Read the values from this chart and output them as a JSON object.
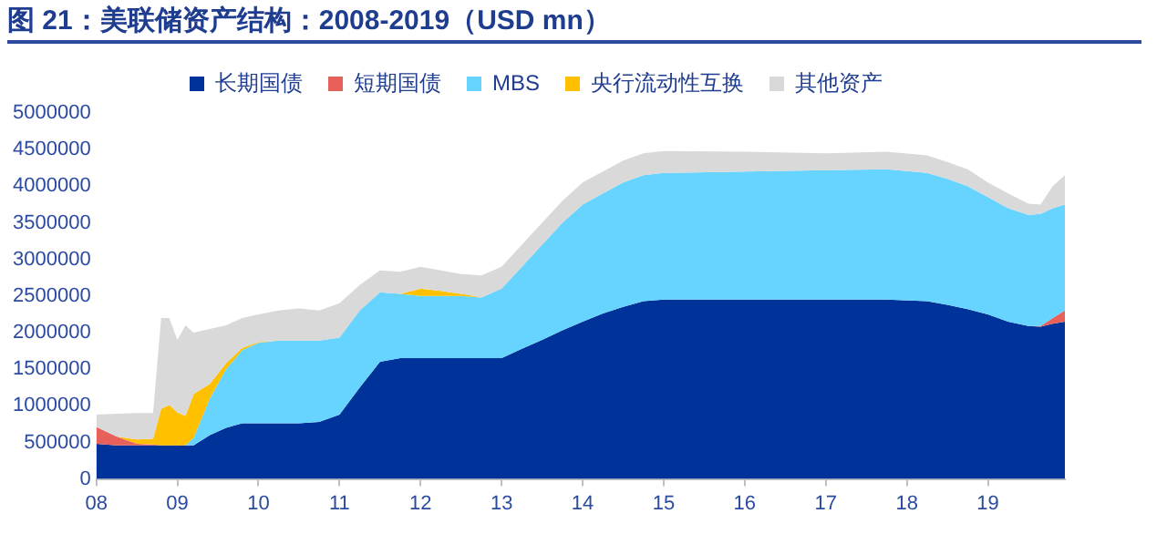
{
  "chart_data": {
    "type": "area",
    "title": "图 21：美联储资产结构：2008-2019（USD mn）",
    "stacked": true,
    "legend": "top",
    "x": [
      2008.0,
      2008.25,
      2008.5,
      2008.7,
      2008.8,
      2008.9,
      2009.0,
      2009.1,
      2009.2,
      2009.4,
      2009.6,
      2009.8,
      2010.0,
      2010.25,
      2010.5,
      2010.75,
      2011.0,
      2011.25,
      2011.5,
      2011.75,
      2012.0,
      2012.25,
      2012.5,
      2012.75,
      2013.0,
      2013.25,
      2013.5,
      2013.75,
      2014.0,
      2014.25,
      2014.5,
      2014.75,
      2015.0,
      2016.0,
      2017.0,
      2017.75,
      2018.25,
      2018.5,
      2018.75,
      2019.0,
      2019.25,
      2019.5,
      2019.65,
      2019.8,
      2019.95
    ],
    "xlim": [
      2008,
      2019.95
    ],
    "xticks": [
      {
        "value": 2008,
        "label": "08"
      },
      {
        "value": 2009,
        "label": "09"
      },
      {
        "value": 2010,
        "label": "10"
      },
      {
        "value": 2011,
        "label": "11"
      },
      {
        "value": 2012,
        "label": "12"
      },
      {
        "value": 2013,
        "label": "13"
      },
      {
        "value": 2014,
        "label": "14"
      },
      {
        "value": 2015,
        "label": "15"
      },
      {
        "value": 2016,
        "label": "16"
      },
      {
        "value": 2017,
        "label": "17"
      },
      {
        "value": 2018,
        "label": "18"
      },
      {
        "value": 2019,
        "label": "19"
      }
    ],
    "ylim": [
      0,
      5000000
    ],
    "yticks": [
      0,
      500000,
      1000000,
      1500000,
      2000000,
      2500000,
      3000000,
      3500000,
      4000000,
      4500000,
      5000000
    ],
    "series": [
      {
        "name": "长期国债",
        "color": "#003399",
        "values": [
          480000,
          460000,
          460000,
          460000,
          460000,
          460000,
          460000,
          460000,
          460000,
          600000,
          700000,
          760000,
          760000,
          760000,
          760000,
          780000,
          880000,
          1250000,
          1600000,
          1650000,
          1650000,
          1650000,
          1650000,
          1650000,
          1650000,
          1780000,
          1900000,
          2030000,
          2150000,
          2260000,
          2350000,
          2430000,
          2450000,
          2450000,
          2450000,
          2450000,
          2430000,
          2380000,
          2320000,
          2250000,
          2150000,
          2090000,
          2080000,
          2120000,
          2150000
        ]
      },
      {
        "name": "短期国债",
        "color": "#e8605a",
        "values": [
          230000,
          120000,
          20000,
          10000,
          0,
          0,
          0,
          0,
          0,
          0,
          0,
          0,
          0,
          0,
          0,
          0,
          0,
          0,
          0,
          0,
          0,
          0,
          0,
          0,
          0,
          0,
          0,
          0,
          0,
          0,
          0,
          0,
          0,
          0,
          0,
          0,
          0,
          0,
          0,
          0,
          0,
          0,
          10000,
          80000,
          150000
        ]
      },
      {
        "name": "MBS",
        "color": "#66d4ff",
        "values": [
          0,
          0,
          0,
          0,
          0,
          0,
          0,
          0,
          100000,
          500000,
          800000,
          1000000,
          1100000,
          1130000,
          1130000,
          1110000,
          1050000,
          1050000,
          950000,
          880000,
          850000,
          850000,
          850000,
          830000,
          950000,
          1120000,
          1300000,
          1470000,
          1600000,
          1640000,
          1700000,
          1720000,
          1730000,
          1750000,
          1770000,
          1780000,
          1750000,
          1720000,
          1680000,
          1600000,
          1550000,
          1520000,
          1530000,
          1500000,
          1450000
        ]
      },
      {
        "name": "央行流动性互换",
        "color": "#ffc000",
        "values": [
          null,
          0,
          60000,
          80000,
          500000,
          550000,
          450000,
          400000,
          600000,
          200000,
          80000,
          30000,
          10000,
          0,
          null,
          null,
          null,
          null,
          null,
          0,
          100000,
          70000,
          30000,
          0,
          null,
          null,
          null,
          null,
          null,
          null,
          null,
          null,
          null,
          null,
          null,
          null,
          null,
          null,
          null,
          null,
          null,
          null,
          null,
          null,
          null
        ]
      },
      {
        "name": "其他资产",
        "color": "#d9d9d9",
        "values": [
          170000,
          310000,
          360000,
          350000,
          1240000,
          1190000,
          990000,
          1240000,
          840000,
          750000,
          520000,
          410000,
          380000,
          410000,
          440000,
          410000,
          470000,
          350000,
          300000,
          300000,
          300000,
          280000,
          270000,
          300000,
          300000,
          300000,
          300000,
          300000,
          300000,
          300000,
          300000,
          300000,
          300000,
          270000,
          230000,
          240000,
          240000,
          230000,
          230000,
          200000,
          200000,
          150000,
          130000,
          300000,
          400000
        ]
      }
    ]
  }
}
